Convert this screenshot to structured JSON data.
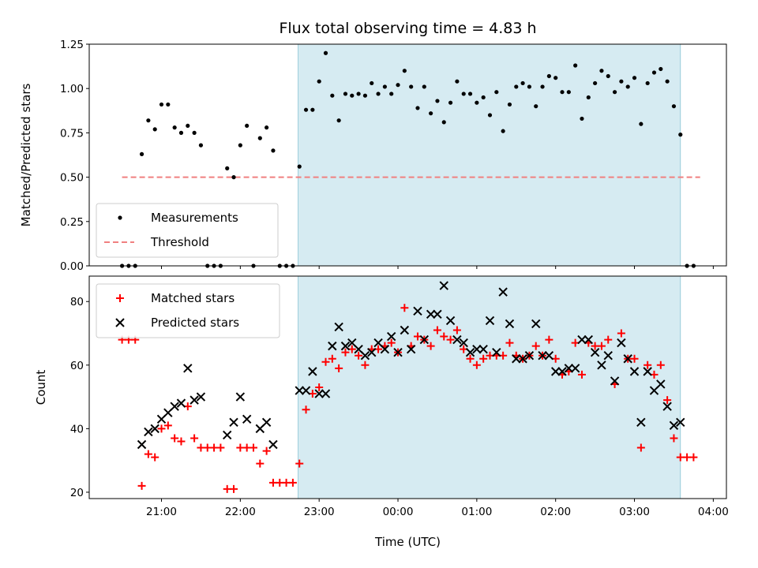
{
  "chart_data": [
    {
      "type": "scatter",
      "title": "Flux total observing time = 4.83 h",
      "xlabel": "",
      "ylabel": "Matched/Predicted stars",
      "xlim": [
        "20:05",
        "04:10"
      ],
      "ylim": [
        0,
        1.25
      ],
      "yticks": [
        0.0,
        0.25,
        0.5,
        0.75,
        1.0,
        1.25
      ],
      "ytick_labels": [
        "0.00",
        "0.25",
        "0.50",
        "0.75",
        "1.00",
        "1.25"
      ],
      "xticks": [
        "21:00",
        "22:00",
        "23:00",
        "00:00",
        "01:00",
        "02:00",
        "03:00",
        "04:00"
      ],
      "shaded_region": {
        "x": [
          "22:44",
          "03:35"
        ],
        "color": "#add8e6"
      },
      "legend": {
        "position": "lower-left"
      },
      "series": [
        {
          "name": "Measurements",
          "marker": "dot",
          "color": "#000000",
          "points": [
            [
              "20:30",
              0
            ],
            [
              "20:35",
              0
            ],
            [
              "20:40",
              0
            ],
            [
              "20:45",
              0.63
            ],
            [
              "20:50",
              0.82
            ],
            [
              "20:55",
              0.77
            ],
            [
              "21:00",
              0.91
            ],
            [
              "21:05",
              0.91
            ],
            [
              "21:10",
              0.78
            ],
            [
              "21:15",
              0.75
            ],
            [
              "21:20",
              0.79
            ],
            [
              "21:25",
              0.75
            ],
            [
              "21:30",
              0.68
            ],
            [
              "21:35",
              0
            ],
            [
              "21:40",
              0
            ],
            [
              "21:45",
              0
            ],
            [
              "21:50",
              0.55
            ],
            [
              "21:55",
              0.5
            ],
            [
              "22:00",
              0.68
            ],
            [
              "22:05",
              0.79
            ],
            [
              "22:10",
              0
            ],
            [
              "22:15",
              0.72
            ],
            [
              "22:20",
              0.78
            ],
            [
              "22:25",
              0.65
            ],
            [
              "22:30",
              0
            ],
            [
              "22:35",
              0
            ],
            [
              "22:40",
              0
            ],
            [
              "22:45",
              0.56
            ],
            [
              "22:50",
              0.88
            ],
            [
              "22:55",
              0.88
            ],
            [
              "23:00",
              1.04
            ],
            [
              "23:05",
              1.2
            ],
            [
              "23:10",
              0.96
            ],
            [
              "23:15",
              0.82
            ],
            [
              "23:20",
              0.97
            ],
            [
              "23:25",
              0.96
            ],
            [
              "23:30",
              0.97
            ],
            [
              "23:35",
              0.96
            ],
            [
              "23:40",
              1.03
            ],
            [
              "23:45",
              0.97
            ],
            [
              "23:50",
              1.01
            ],
            [
              "23:55",
              0.97
            ],
            [
              "00:00",
              1.02
            ],
            [
              "00:05",
              1.1
            ],
            [
              "00:10",
              1.01
            ],
            [
              "00:15",
              0.89
            ],
            [
              "00:20",
              1.01
            ],
            [
              "00:25",
              0.86
            ],
            [
              "00:30",
              0.93
            ],
            [
              "00:35",
              0.81
            ],
            [
              "00:40",
              0.92
            ],
            [
              "00:45",
              1.04
            ],
            [
              "00:50",
              0.97
            ],
            [
              "00:55",
              0.97
            ],
            [
              "01:00",
              0.92
            ],
            [
              "01:05",
              0.95
            ],
            [
              "01:10",
              0.85
            ],
            [
              "01:15",
              0.98
            ],
            [
              "01:20",
              0.76
            ],
            [
              "01:25",
              0.91
            ],
            [
              "01:30",
              1.01
            ],
            [
              "01:35",
              1.03
            ],
            [
              "01:40",
              1.01
            ],
            [
              "01:45",
              0.9
            ],
            [
              "01:50",
              1.01
            ],
            [
              "01:55",
              1.07
            ],
            [
              "02:00",
              1.06
            ],
            [
              "02:05",
              0.98
            ],
            [
              "02:10",
              0.98
            ],
            [
              "02:15",
              1.13
            ],
            [
              "02:20",
              0.83
            ],
            [
              "02:25",
              0.95
            ],
            [
              "02:30",
              1.03
            ],
            [
              "02:35",
              1.1
            ],
            [
              "02:40",
              1.07
            ],
            [
              "02:45",
              0.98
            ],
            [
              "02:50",
              1.04
            ],
            [
              "02:55",
              1.01
            ],
            [
              "03:00",
              1.06
            ],
            [
              "03:05",
              0.8
            ],
            [
              "03:10",
              1.03
            ],
            [
              "03:15",
              1.09
            ],
            [
              "03:20",
              1.11
            ],
            [
              "03:25",
              1.04
            ],
            [
              "03:30",
              0.9
            ],
            [
              "03:35",
              0.74
            ],
            [
              "03:40",
              0
            ],
            [
              "03:45",
              0
            ]
          ]
        },
        {
          "name": "Threshold",
          "style": "dashed-line",
          "color": "#f08080",
          "points": [
            [
              "20:30",
              0.5
            ],
            [
              "03:50",
              0.5
            ]
          ]
        }
      ]
    },
    {
      "type": "scatter",
      "title": "",
      "xlabel": "Time (UTC)",
      "ylabel": "Count",
      "xlim": [
        "20:05",
        "04:10"
      ],
      "ylim": [
        18,
        88
      ],
      "yticks": [
        20,
        40,
        60,
        80
      ],
      "ytick_labels": [
        "20",
        "40",
        "60",
        "80"
      ],
      "xticks": [
        "21:00",
        "22:00",
        "23:00",
        "00:00",
        "01:00",
        "02:00",
        "03:00",
        "04:00"
      ],
      "shaded_region": {
        "x": [
          "22:44",
          "03:35"
        ],
        "color": "#add8e6"
      },
      "legend": {
        "position": "upper-left"
      },
      "series": [
        {
          "name": "Matched stars",
          "marker": "plus",
          "color": "#ff0000",
          "points": [
            [
              "20:30",
              68
            ],
            [
              "20:35",
              68
            ],
            [
              "20:40",
              68
            ],
            [
              "20:45",
              22
            ],
            [
              "20:50",
              32
            ],
            [
              "20:55",
              31
            ],
            [
              "21:00",
              40
            ],
            [
              "21:05",
              41
            ],
            [
              "21:10",
              37
            ],
            [
              "21:15",
              36
            ],
            [
              "21:20",
              47
            ],
            [
              "21:25",
              37
            ],
            [
              "21:30",
              34
            ],
            [
              "21:35",
              34
            ],
            [
              "21:40",
              34
            ],
            [
              "21:45",
              34
            ],
            [
              "21:50",
              21
            ],
            [
              "21:55",
              21
            ],
            [
              "22:00",
              34
            ],
            [
              "22:05",
              34
            ],
            [
              "22:10",
              34
            ],
            [
              "22:15",
              29
            ],
            [
              "22:20",
              33
            ],
            [
              "22:25",
              23
            ],
            [
              "22:30",
              23
            ],
            [
              "22:35",
              23
            ],
            [
              "22:40",
              23
            ],
            [
              "22:45",
              29
            ],
            [
              "22:50",
              46
            ],
            [
              "22:55",
              51
            ],
            [
              "23:00",
              53
            ],
            [
              "23:05",
              61
            ],
            [
              "23:10",
              62
            ],
            [
              "23:15",
              59
            ],
            [
              "23:20",
              64
            ],
            [
              "23:25",
              65
            ],
            [
              "23:30",
              63
            ],
            [
              "23:35",
              60
            ],
            [
              "23:40",
              65
            ],
            [
              "23:45",
              65
            ],
            [
              "23:50",
              66
            ],
            [
              "23:55",
              67
            ],
            [
              "00:00",
              64
            ],
            [
              "00:05",
              78
            ],
            [
              "00:10",
              66
            ],
            [
              "00:15",
              69
            ],
            [
              "00:20",
              68
            ],
            [
              "00:25",
              66
            ],
            [
              "00:30",
              71
            ],
            [
              "00:35",
              69
            ],
            [
              "00:40",
              68
            ],
            [
              "00:45",
              71
            ],
            [
              "00:50",
              65
            ],
            [
              "00:55",
              62
            ],
            [
              "01:00",
              60
            ],
            [
              "01:05",
              62
            ],
            [
              "01:10",
              63
            ],
            [
              "01:15",
              63
            ],
            [
              "01:20",
              63
            ],
            [
              "01:25",
              67
            ],
            [
              "01:30",
              63
            ],
            [
              "01:35",
              62
            ],
            [
              "01:40",
              63
            ],
            [
              "01:45",
              66
            ],
            [
              "01:50",
              63
            ],
            [
              "01:55",
              68
            ],
            [
              "02:00",
              62
            ],
            [
              "02:05",
              57
            ],
            [
              "02:10",
              58
            ],
            [
              "02:15",
              67
            ],
            [
              "02:20",
              57
            ],
            [
              "02:25",
              67
            ],
            [
              "02:30",
              66
            ],
            [
              "02:35",
              66
            ],
            [
              "02:40",
              68
            ],
            [
              "02:45",
              54
            ],
            [
              "02:50",
              70
            ],
            [
              "02:55",
              62
            ],
            [
              "03:00",
              62
            ],
            [
              "03:05",
              34
            ],
            [
              "03:10",
              60
            ],
            [
              "03:15",
              57
            ],
            [
              "03:20",
              60
            ],
            [
              "03:25",
              49
            ],
            [
              "03:30",
              37
            ],
            [
              "03:35",
              31
            ],
            [
              "03:40",
              31
            ],
            [
              "03:45",
              31
            ]
          ]
        },
        {
          "name": "Predicted stars",
          "marker": "x",
          "color": "#000000",
          "points": [
            [
              "20:45",
              35
            ],
            [
              "20:50",
              39
            ],
            [
              "20:55",
              40
            ],
            [
              "21:00",
              43
            ],
            [
              "21:05",
              45
            ],
            [
              "21:10",
              47
            ],
            [
              "21:15",
              48
            ],
            [
              "21:20",
              59
            ],
            [
              "21:25",
              49
            ],
            [
              "21:30",
              50
            ],
            [
              "21:50",
              38
            ],
            [
              "21:55",
              42
            ],
            [
              "22:00",
              50
            ],
            [
              "22:05",
              43
            ],
            [
              "22:15",
              40
            ],
            [
              "22:20",
              42
            ],
            [
              "22:25",
              35
            ],
            [
              "22:45",
              52
            ],
            [
              "22:50",
              52
            ],
            [
              "22:55",
              58
            ],
            [
              "23:00",
              51
            ],
            [
              "23:05",
              51
            ],
            [
              "23:10",
              66
            ],
            [
              "23:15",
              72
            ],
            [
              "23:20",
              66
            ],
            [
              "23:25",
              67
            ],
            [
              "23:30",
              65
            ],
            [
              "23:35",
              63
            ],
            [
              "23:40",
              64
            ],
            [
              "23:45",
              67
            ],
            [
              "23:50",
              65
            ],
            [
              "23:55",
              69
            ],
            [
              "00:00",
              64
            ],
            [
              "00:05",
              71
            ],
            [
              "00:10",
              65
            ],
            [
              "00:15",
              77
            ],
            [
              "00:20",
              68
            ],
            [
              "00:25",
              76
            ],
            [
              "00:30",
              76
            ],
            [
              "00:35",
              85
            ],
            [
              "00:40",
              74
            ],
            [
              "00:45",
              68
            ],
            [
              "00:50",
              67
            ],
            [
              "00:55",
              64
            ],
            [
              "01:00",
              65
            ],
            [
              "01:05",
              65
            ],
            [
              "01:10",
              74
            ],
            [
              "01:15",
              64
            ],
            [
              "01:20",
              83
            ],
            [
              "01:25",
              73
            ],
            [
              "01:30",
              62
            ],
            [
              "01:35",
              62
            ],
            [
              "01:40",
              63
            ],
            [
              "01:45",
              73
            ],
            [
              "01:50",
              63
            ],
            [
              "01:55",
              63
            ],
            [
              "02:00",
              58
            ],
            [
              "02:05",
              58
            ],
            [
              "02:10",
              59
            ],
            [
              "02:15",
              59
            ],
            [
              "02:20",
              68
            ],
            [
              "02:25",
              68
            ],
            [
              "02:30",
              64
            ],
            [
              "02:35",
              60
            ],
            [
              "02:40",
              63
            ],
            [
              "02:45",
              55
            ],
            [
              "02:50",
              67
            ],
            [
              "02:55",
              62
            ],
            [
              "03:00",
              58
            ],
            [
              "03:05",
              42
            ],
            [
              "03:10",
              58
            ],
            [
              "03:15",
              52
            ],
            [
              "03:20",
              54
            ],
            [
              "03:25",
              47
            ],
            [
              "03:30",
              41
            ],
            [
              "03:35",
              42
            ]
          ]
        }
      ]
    }
  ]
}
